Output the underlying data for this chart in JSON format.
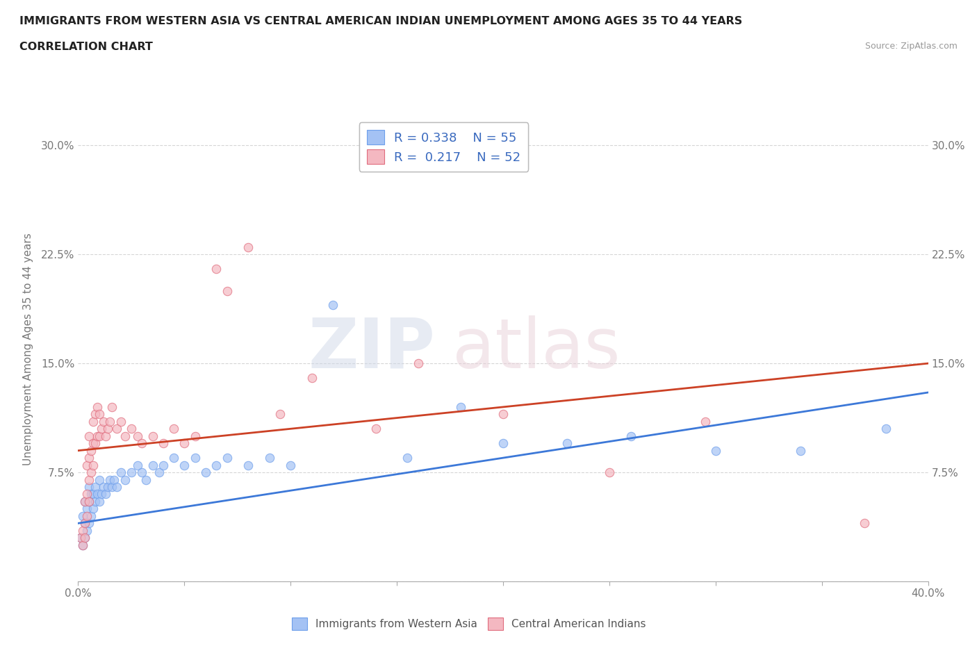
{
  "title": "IMMIGRANTS FROM WESTERN ASIA VS CENTRAL AMERICAN INDIAN UNEMPLOYMENT AMONG AGES 35 TO 44 YEARS",
  "subtitle": "CORRELATION CHART",
  "source": "Source: ZipAtlas.com",
  "ylabel_label": "Unemployment Among Ages 35 to 44 years",
  "x_legend_label": "Immigrants from Western Asia",
  "x_legend2_label": "Central American Indians",
  "xlim": [
    0.0,
    0.4
  ],
  "ylim": [
    0.0,
    0.32
  ],
  "r_blue": 0.338,
  "n_blue": 55,
  "r_pink": 0.217,
  "n_pink": 52,
  "blue_color": "#a4c2f4",
  "pink_color": "#f4b8c1",
  "blue_edge_color": "#6d9eeb",
  "pink_edge_color": "#e06c7d",
  "blue_line_color": "#3c78d8",
  "pink_line_color": "#cc4125",
  "watermark_zip": "ZIP",
  "watermark_atlas": "atlas",
  "blue_scatter": [
    [
      0.001,
      0.03
    ],
    [
      0.002,
      0.025
    ],
    [
      0.002,
      0.045
    ],
    [
      0.003,
      0.03
    ],
    [
      0.003,
      0.04
    ],
    [
      0.003,
      0.055
    ],
    [
      0.004,
      0.035
    ],
    [
      0.004,
      0.05
    ],
    [
      0.005,
      0.04
    ],
    [
      0.005,
      0.055
    ],
    [
      0.005,
      0.065
    ],
    [
      0.006,
      0.045
    ],
    [
      0.006,
      0.06
    ],
    [
      0.007,
      0.05
    ],
    [
      0.007,
      0.06
    ],
    [
      0.008,
      0.055
    ],
    [
      0.008,
      0.065
    ],
    [
      0.009,
      0.06
    ],
    [
      0.01,
      0.055
    ],
    [
      0.01,
      0.07
    ],
    [
      0.011,
      0.06
    ],
    [
      0.012,
      0.065
    ],
    [
      0.013,
      0.06
    ],
    [
      0.014,
      0.065
    ],
    [
      0.015,
      0.07
    ],
    [
      0.016,
      0.065
    ],
    [
      0.017,
      0.07
    ],
    [
      0.018,
      0.065
    ],
    [
      0.02,
      0.075
    ],
    [
      0.022,
      0.07
    ],
    [
      0.025,
      0.075
    ],
    [
      0.028,
      0.08
    ],
    [
      0.03,
      0.075
    ],
    [
      0.032,
      0.07
    ],
    [
      0.035,
      0.08
    ],
    [
      0.038,
      0.075
    ],
    [
      0.04,
      0.08
    ],
    [
      0.045,
      0.085
    ],
    [
      0.05,
      0.08
    ],
    [
      0.055,
      0.085
    ],
    [
      0.06,
      0.075
    ],
    [
      0.065,
      0.08
    ],
    [
      0.07,
      0.085
    ],
    [
      0.08,
      0.08
    ],
    [
      0.09,
      0.085
    ],
    [
      0.1,
      0.08
    ],
    [
      0.12,
      0.19
    ],
    [
      0.155,
      0.085
    ],
    [
      0.18,
      0.12
    ],
    [
      0.2,
      0.095
    ],
    [
      0.23,
      0.095
    ],
    [
      0.26,
      0.1
    ],
    [
      0.3,
      0.09
    ],
    [
      0.34,
      0.09
    ],
    [
      0.38,
      0.105
    ]
  ],
  "pink_scatter": [
    [
      0.001,
      0.03
    ],
    [
      0.002,
      0.025
    ],
    [
      0.002,
      0.035
    ],
    [
      0.003,
      0.03
    ],
    [
      0.003,
      0.04
    ],
    [
      0.003,
      0.055
    ],
    [
      0.004,
      0.045
    ],
    [
      0.004,
      0.06
    ],
    [
      0.004,
      0.08
    ],
    [
      0.005,
      0.055
    ],
    [
      0.005,
      0.07
    ],
    [
      0.005,
      0.085
    ],
    [
      0.005,
      0.1
    ],
    [
      0.006,
      0.075
    ],
    [
      0.006,
      0.09
    ],
    [
      0.007,
      0.08
    ],
    [
      0.007,
      0.095
    ],
    [
      0.007,
      0.11
    ],
    [
      0.008,
      0.095
    ],
    [
      0.008,
      0.115
    ],
    [
      0.009,
      0.1
    ],
    [
      0.009,
      0.12
    ],
    [
      0.01,
      0.1
    ],
    [
      0.01,
      0.115
    ],
    [
      0.011,
      0.105
    ],
    [
      0.012,
      0.11
    ],
    [
      0.013,
      0.1
    ],
    [
      0.014,
      0.105
    ],
    [
      0.015,
      0.11
    ],
    [
      0.016,
      0.12
    ],
    [
      0.018,
      0.105
    ],
    [
      0.02,
      0.11
    ],
    [
      0.022,
      0.1
    ],
    [
      0.025,
      0.105
    ],
    [
      0.028,
      0.1
    ],
    [
      0.03,
      0.095
    ],
    [
      0.035,
      0.1
    ],
    [
      0.04,
      0.095
    ],
    [
      0.045,
      0.105
    ],
    [
      0.05,
      0.095
    ],
    [
      0.055,
      0.1
    ],
    [
      0.065,
      0.215
    ],
    [
      0.07,
      0.2
    ],
    [
      0.08,
      0.23
    ],
    [
      0.095,
      0.115
    ],
    [
      0.11,
      0.14
    ],
    [
      0.14,
      0.105
    ],
    [
      0.16,
      0.15
    ],
    [
      0.2,
      0.115
    ],
    [
      0.25,
      0.075
    ],
    [
      0.295,
      0.11
    ],
    [
      0.37,
      0.04
    ]
  ]
}
